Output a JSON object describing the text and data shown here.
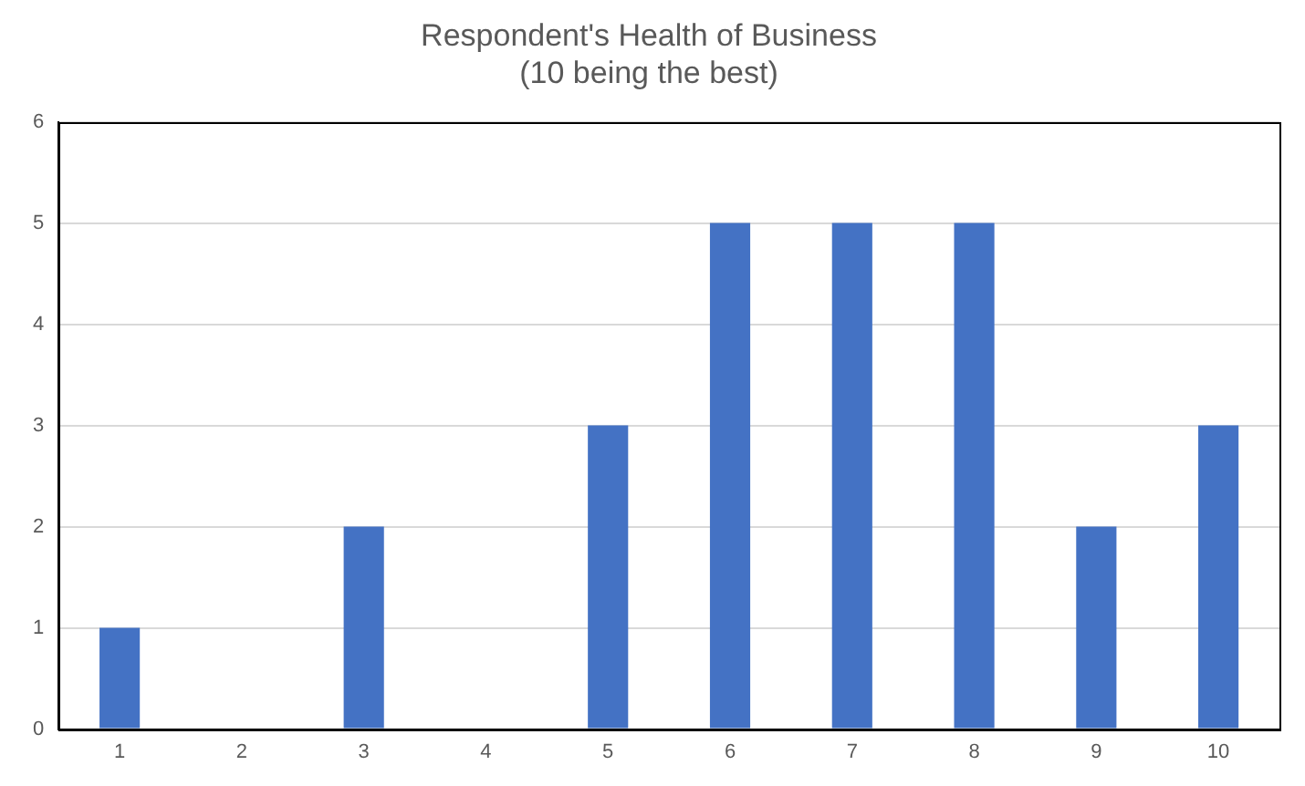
{
  "chart_data": {
    "type": "bar",
    "title": "Respondent's Health of Business\n(10 being the best)",
    "categories": [
      "1",
      "2",
      "3",
      "4",
      "5",
      "6",
      "7",
      "8",
      "9",
      "10"
    ],
    "values": [
      1,
      0,
      2,
      0,
      3,
      5,
      5,
      5,
      2,
      3
    ],
    "color": "#4472c4",
    "ylim": [
      0,
      6
    ],
    "yticks": [
      0,
      1,
      2,
      3,
      4,
      5,
      6
    ],
    "grid": "y",
    "legend": false
  }
}
